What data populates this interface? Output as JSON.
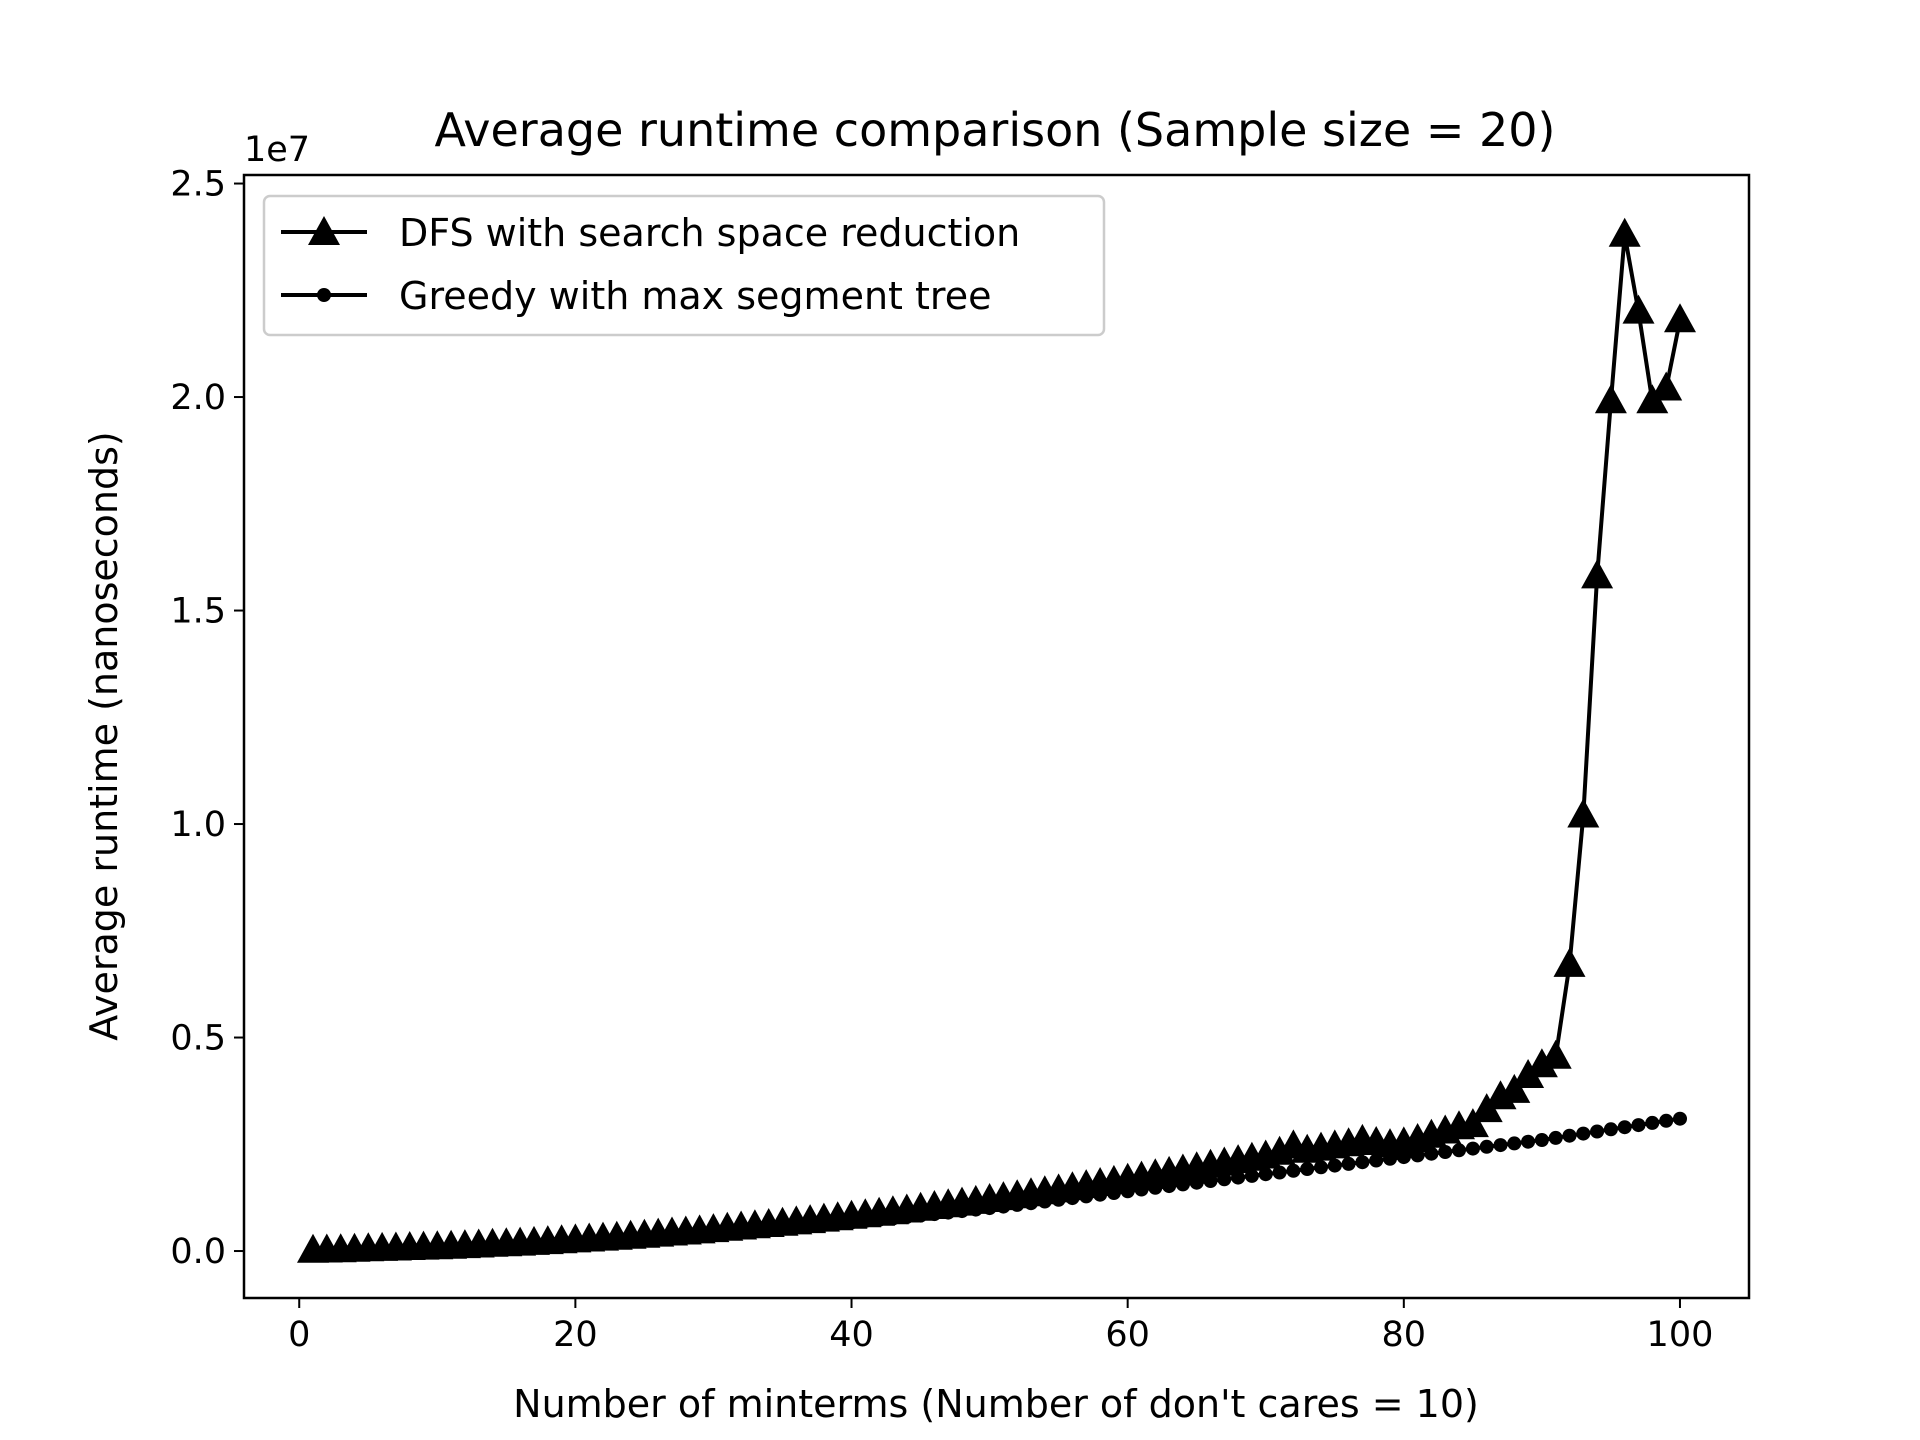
{
  "chart_data": {
    "type": "line",
    "title": "Average runtime comparison (Sample size = 20)",
    "xlabel": "Number of minterms (Number of don't cares = 10)",
    "ylabel": "Average runtime (nanoseconds)",
    "y_offset_label": "1e7",
    "xlim": [
      -4,
      105
    ],
    "ylim": [
      -1100000,
      25200000
    ],
    "x_ticks": [
      0,
      20,
      40,
      60,
      80,
      100
    ],
    "x_tick_labels": [
      "0",
      "20",
      "40",
      "60",
      "80",
      "100"
    ],
    "y_ticks": [
      0,
      5000000,
      10000000,
      15000000,
      20000000,
      25000000
    ],
    "y_tick_labels": [
      "0.0",
      "0.5",
      "1.0",
      "1.5",
      "2.0",
      "2.5"
    ],
    "grid": false,
    "legend_position": "upper-left",
    "color": "#000000",
    "x": [
      1,
      2,
      3,
      4,
      5,
      6,
      7,
      8,
      9,
      10,
      11,
      12,
      13,
      14,
      15,
      16,
      17,
      18,
      19,
      20,
      21,
      22,
      23,
      24,
      25,
      26,
      27,
      28,
      29,
      30,
      31,
      32,
      33,
      34,
      35,
      36,
      37,
      38,
      39,
      40,
      41,
      42,
      43,
      44,
      45,
      46,
      47,
      48,
      49,
      50,
      51,
      52,
      53,
      54,
      55,
      56,
      57,
      58,
      59,
      60,
      61,
      62,
      63,
      64,
      65,
      66,
      67,
      68,
      69,
      70,
      71,
      72,
      73,
      74,
      75,
      76,
      77,
      78,
      79,
      80,
      81,
      82,
      83,
      84,
      85,
      86,
      87,
      88,
      89,
      90,
      91,
      92,
      93,
      94,
      95,
      96,
      97,
      98,
      99,
      100
    ],
    "series": [
      {
        "name": "DFS with search space reduction",
        "marker": "triangle",
        "values": [
          5000,
          12000,
          20000,
          30000,
          40000,
          50000,
          60000,
          70000,
          80000,
          90000,
          100000,
          115000,
          130000,
          145000,
          160000,
          175000,
          190000,
          210000,
          230000,
          250000,
          270000,
          290000,
          310000,
          335000,
          360000,
          385000,
          410000,
          435000,
          460000,
          490000,
          520000,
          550000,
          580000,
          610000,
          640000,
          670000,
          700000,
          735000,
          770000,
          805000,
          840000,
          875000,
          910000,
          950000,
          990000,
          1030000,
          1070000,
          1110000,
          1150000,
          1195000,
          1240000,
          1285000,
          1330000,
          1375000,
          1420000,
          1470000,
          1520000,
          1570000,
          1620000,
          1670000,
          1720000,
          1775000,
          1830000,
          1885000,
          1940000,
          1995000,
          2050000,
          2105000,
          2160000,
          2215000,
          2300000,
          2450000,
          2350000,
          2400000,
          2450000,
          2500000,
          2580000,
          2530000,
          2480000,
          2520000,
          2600000,
          2700000,
          2800000,
          2900000,
          2950000,
          3300000,
          3600000,
          3750000,
          4100000,
          4350000,
          4550000,
          6700000,
          10200000,
          15800000,
          19900000,
          23800000,
          22000000,
          19900000,
          20200000,
          21800000
        ]
      },
      {
        "name": "Greedy with max segment tree",
        "marker": "circle",
        "values": [
          3000,
          8000,
          14000,
          22000,
          30000,
          38000,
          46000,
          55000,
          64000,
          73000,
          82000,
          95000,
          108000,
          121000,
          134000,
          147000,
          160000,
          175000,
          190000,
          205000,
          220000,
          240000,
          260000,
          280000,
          300000,
          320000,
          340000,
          360000,
          380000,
          405000,
          430000,
          455000,
          480000,
          505000,
          530000,
          555000,
          580000,
          610000,
          640000,
          670000,
          700000,
          730000,
          760000,
          795000,
          830000,
          865000,
          900000,
          935000,
          970000,
          1005000,
          1040000,
          1080000,
          1120000,
          1160000,
          1200000,
          1240000,
          1280000,
          1320000,
          1360000,
          1400000,
          1440000,
          1480000,
          1520000,
          1560000,
          1600000,
          1640000,
          1680000,
          1720000,
          1760000,
          1800000,
          1840000,
          1880000,
          1920000,
          1960000,
          2000000,
          2040000,
          2080000,
          2120000,
          2160000,
          2200000,
          2240000,
          2280000,
          2320000,
          2360000,
          2400000,
          2440000,
          2480000,
          2520000,
          2560000,
          2600000,
          2650000,
          2700000,
          2750000,
          2800000,
          2850000,
          2900000,
          2950000,
          3000000,
          3050000,
          3100000
        ]
      }
    ]
  }
}
